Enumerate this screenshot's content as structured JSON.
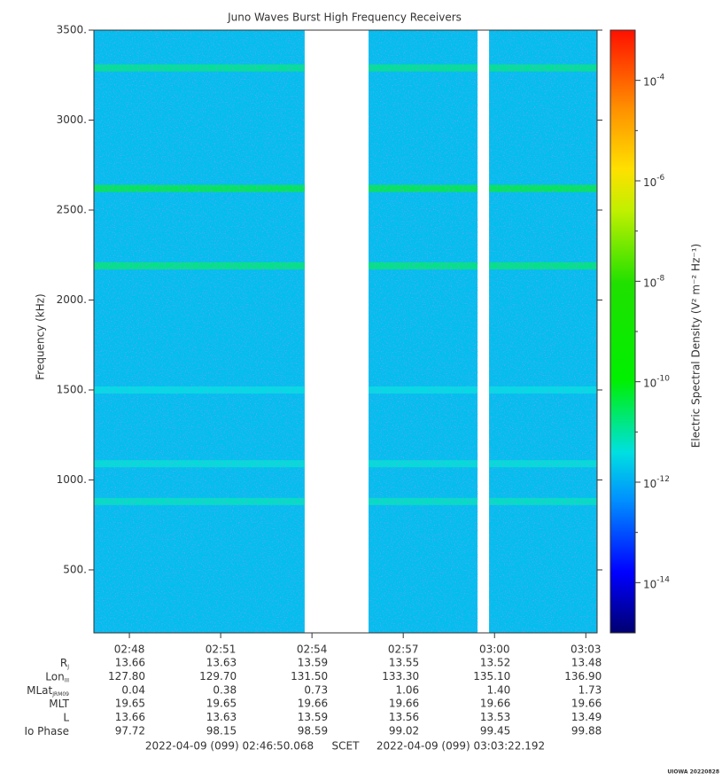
{
  "chart_data": {
    "type": "spectrogram",
    "title": "Juno Waves Burst High Frequency Receivers",
    "ylabel": "Frequency (kHz)",
    "zlabel": "Electric Spectral Density (V² m⁻² Hz⁻¹)",
    "xlim": [
      46.834,
      63.37
    ],
    "xticks": [
      {
        "value": 48,
        "label": "02:48"
      },
      {
        "value": 51,
        "label": "02:51"
      },
      {
        "value": 54,
        "label": "02:54"
      },
      {
        "value": 57,
        "label": "02:57"
      },
      {
        "value": 60,
        "label": "03:00"
      },
      {
        "value": 63,
        "label": "03:03"
      }
    ],
    "ylim": [
      150,
      3500
    ],
    "yticks": [
      {
        "value": 500,
        "label": "500."
      },
      {
        "value": 1000,
        "label": "1000."
      },
      {
        "value": 1500,
        "label": "1500."
      },
      {
        "value": 2000,
        "label": "2000."
      },
      {
        "value": 2500,
        "label": "2500."
      },
      {
        "value": 3000,
        "label": "3000."
      },
      {
        "value": 3500,
        "label": "3500."
      }
    ],
    "zlim": [
      1e-15,
      0.001
    ],
    "zscale": "log",
    "zticks": [
      {
        "value": 1e-14,
        "label": "10",
        "exponent": "-14"
      },
      {
        "value": 1e-12,
        "label": "10",
        "exponent": "-12"
      },
      {
        "value": 1e-10,
        "label": "10",
        "exponent": "-10"
      },
      {
        "value": 1e-08,
        "label": "10",
        "exponent": "-8"
      },
      {
        "value": 1e-06,
        "label": "10",
        "exponent": "-6"
      },
      {
        "value": 0.0001,
        "label": "10",
        "exponent": "-4"
      }
    ],
    "zminor_ticks": [
      1e-13,
      1e-11,
      1e-09,
      1e-07,
      1e-05
    ],
    "colormap": [
      [
        0,
        "#000070"
      ],
      [
        0.1,
        "#0000ff"
      ],
      [
        0.22,
        "#0090ff"
      ],
      [
        0.3,
        "#00e0e0"
      ],
      [
        0.42,
        "#00f000"
      ],
      [
        0.58,
        "#20e000"
      ],
      [
        0.7,
        "#c0f000"
      ],
      [
        0.77,
        "#ffe000"
      ],
      [
        0.87,
        "#ff9000"
      ],
      [
        1,
        "#ff1000"
      ]
    ],
    "segments": [
      [
        46.834,
        53.76
      ],
      [
        55.86,
        59.44
      ],
      [
        59.82,
        63.37
      ]
    ],
    "background_level": 1.6e-12,
    "lines": [
      {
        "frequency": 3290,
        "level": 1.5e-11
      },
      {
        "frequency": 2620,
        "level": 4e-11
      },
      {
        "frequency": 2190,
        "level": 2e-11
      },
      {
        "frequency": 1500,
        "level": 4e-12
      },
      {
        "frequency": 1090,
        "level": 5e-12
      },
      {
        "frequency": 880,
        "level": 7e-12
      }
    ],
    "ephemeris": [
      {
        "label": "R",
        "sub": "J",
        "values": [
          "13.66",
          "13.63",
          "13.59",
          "13.55",
          "13.52",
          "13.48"
        ]
      },
      {
        "label": "Lon",
        "sub": "III",
        "values": [
          "127.80",
          "129.70",
          "131.50",
          "133.30",
          "135.10",
          "136.90"
        ]
      },
      {
        "label": "MLat",
        "sub": "JRM09",
        "values": [
          "0.04",
          "0.38",
          "0.73",
          "1.06",
          "1.40",
          "1.73"
        ]
      },
      {
        "label": "MLT",
        "values": [
          "19.65",
          "19.65",
          "19.66",
          "19.66",
          "19.66",
          "19.66"
        ]
      },
      {
        "label": "L",
        "values": [
          "13.66",
          "13.63",
          "13.59",
          "13.56",
          "13.53",
          "13.49"
        ]
      },
      {
        "label": "Io Phase",
        "values": [
          "97.72",
          "98.15",
          "98.59",
          "99.02",
          "99.45",
          "99.88"
        ]
      }
    ],
    "start_time": "2022-04-09 (099) 02:46:50.068",
    "time_label": "SCET",
    "end_time": "2022-04-09 (099) 03:03:22.192",
    "footer": "UIOWA 20220828"
  }
}
